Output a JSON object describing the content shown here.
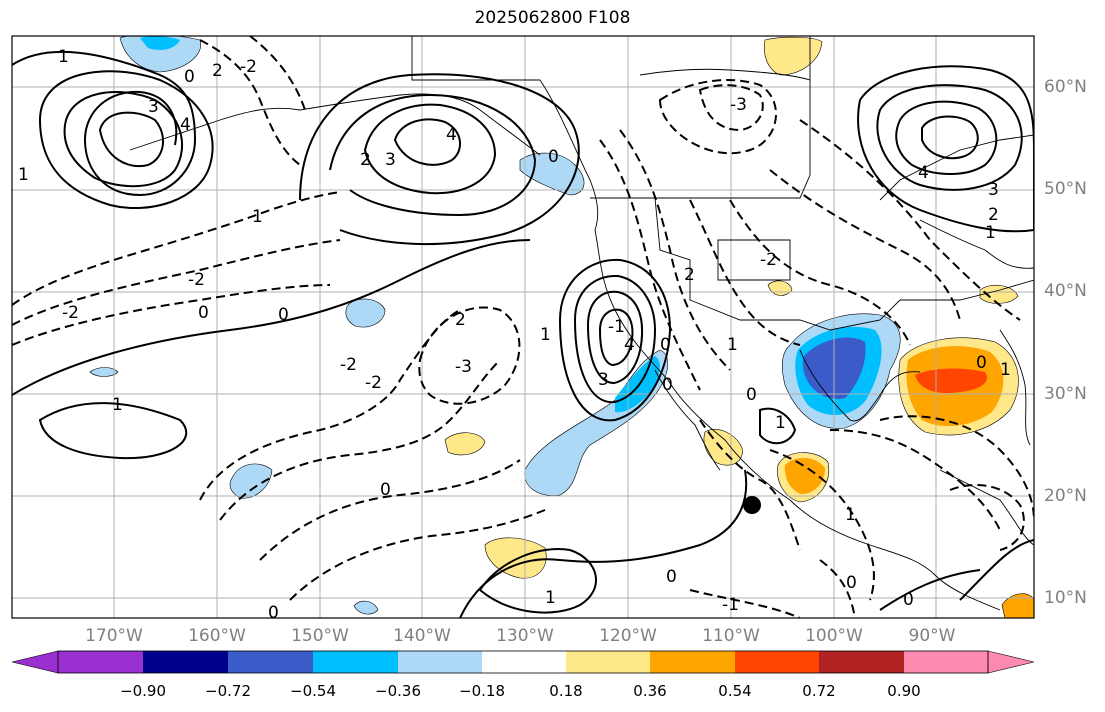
{
  "title": "2025062800 F108",
  "lon_labels": [
    "170°W",
    "160°W",
    "150°W",
    "140°W",
    "130°W",
    "120°W",
    "110°W",
    "100°W",
    "90°W"
  ],
  "lat_labels": [
    "60°N",
    "50°N",
    "40°N",
    "30°N",
    "20°N",
    "10°N"
  ],
  "colorbar": {
    "ticks": [
      "−0.90",
      "−0.72",
      "−0.54",
      "−0.36",
      "−0.18",
      "0.18",
      "0.36",
      "0.54",
      "0.72",
      "0.90"
    ],
    "colors": [
      "#9b30d0",
      "#00008b",
      "#3a5bc8",
      "#00bfff",
      "#add8f6",
      "#ffffff",
      "#ffe88a",
      "#ffa500",
      "#ff4500",
      "#b22222",
      "#ff8ab0"
    ]
  },
  "contour_labels": [
    {
      "text": "1"
    },
    {
      "text": "0"
    },
    {
      "text": "2"
    },
    {
      "text": "-2"
    },
    {
      "text": "3"
    },
    {
      "text": "4"
    },
    {
      "text": "1"
    },
    {
      "text": "3"
    },
    {
      "text": "2"
    },
    {
      "text": "4"
    },
    {
      "text": "1"
    },
    {
      "text": "-3"
    },
    {
      "text": "0"
    },
    {
      "text": "4"
    },
    {
      "text": "3"
    },
    {
      "text": "2"
    },
    {
      "text": "1"
    },
    {
      "text": "-2"
    },
    {
      "text": "-2"
    },
    {
      "text": "0"
    },
    {
      "text": "0"
    },
    {
      "text": "-2"
    },
    {
      "text": "2"
    },
    {
      "text": "-3"
    },
    {
      "text": "-2"
    },
    {
      "text": "1"
    },
    {
      "text": "3"
    },
    {
      "text": "-1"
    },
    {
      "text": "4"
    },
    {
      "text": "0"
    },
    {
      "text": "0"
    },
    {
      "text": "1"
    },
    {
      "text": "2"
    },
    {
      "text": "-2"
    },
    {
      "text": "1"
    },
    {
      "text": "0"
    },
    {
      "text": "1"
    },
    {
      "text": "0"
    },
    {
      "text": "1"
    },
    {
      "text": "0"
    },
    {
      "text": "0"
    },
    {
      "text": "1"
    },
    {
      "text": "0"
    },
    {
      "text": "1"
    },
    {
      "text": "0"
    },
    {
      "text": "-1"
    },
    {
      "text": "0"
    }
  ],
  "marker": {
    "name": "black dot"
  }
}
